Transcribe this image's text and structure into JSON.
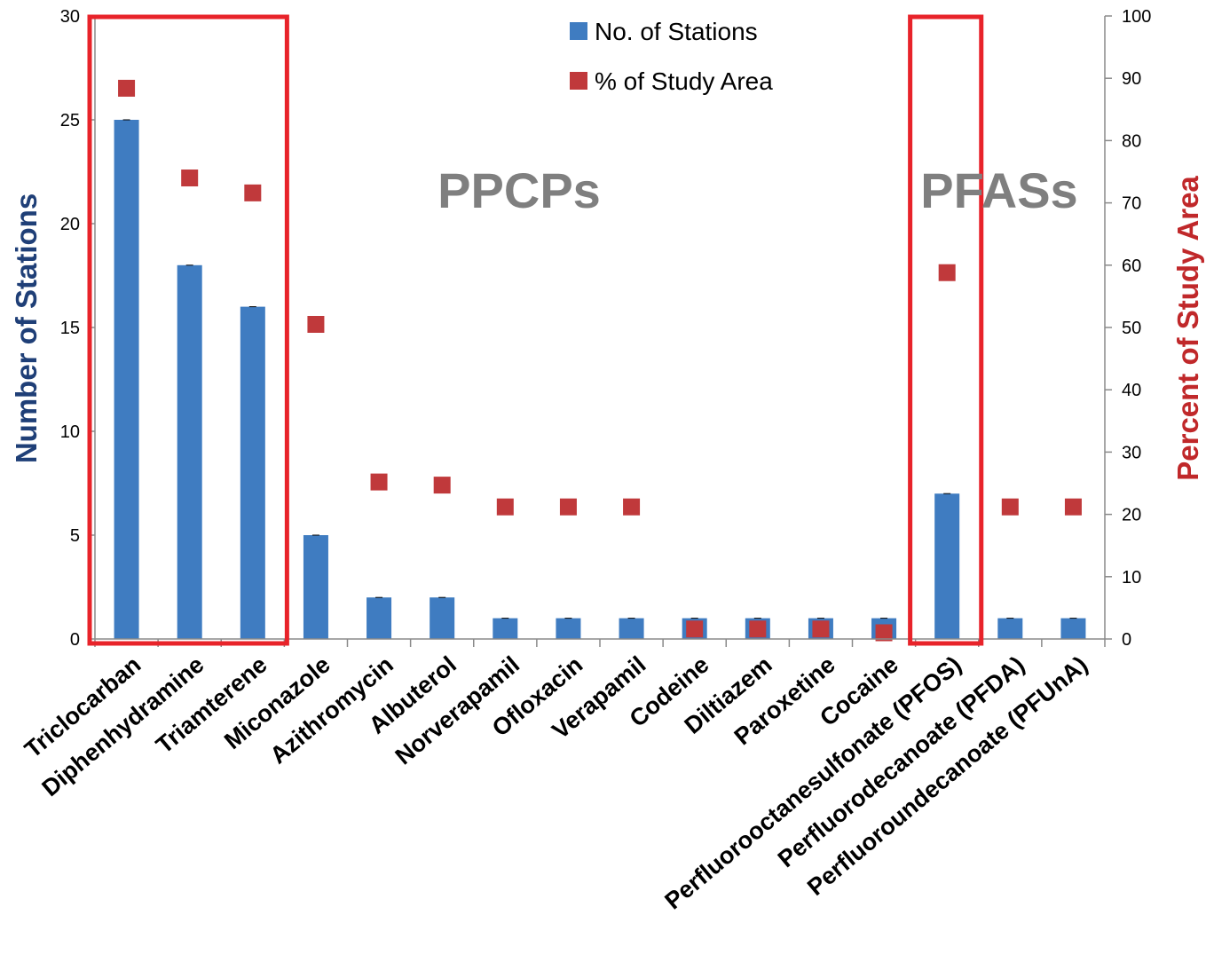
{
  "chart_data": {
    "type": "bar",
    "categories": [
      "Triclocarban",
      "Diphenhydramine",
      "Triamterene",
      "Miconazole",
      "Azithromycin",
      "Albuterol",
      "Norverapamil",
      "Ofloxacin",
      "Verapamil",
      "Codeine",
      "Diltiazem",
      "Paroxetine",
      "Cocaine",
      "Perfluorooctanesulfonate (PFOS)",
      "Perfluorodecanoate (PFDA)",
      "Perfluoroundecanoate (PFUnA)"
    ],
    "series": [
      {
        "name": "No. of Stations",
        "type": "bar",
        "axis": "left",
        "color": "#3f7cc1",
        "values": [
          25,
          18,
          16,
          5,
          2,
          2,
          1,
          1,
          1,
          1,
          1,
          1,
          1,
          7,
          1,
          1
        ]
      },
      {
        "name": "% of Study Area",
        "type": "scatter",
        "axis": "right",
        "color": "#c0393b",
        "values": [
          88.4,
          74.0,
          71.6,
          50.5,
          25.2,
          24.7,
          21.2,
          21.2,
          21.2,
          1.6,
          1.6,
          1.6,
          1.0,
          58.8,
          21.2,
          21.2
        ]
      }
    ],
    "y_left": {
      "label": "Number of Stations",
      "range": [
        0,
        30
      ],
      "ticks": [
        "0",
        "5",
        "10",
        "15",
        "20",
        "25",
        "30"
      ]
    },
    "y_right": {
      "label": "Percent of Study Area",
      "range": [
        0,
        100
      ],
      "ticks": [
        "0",
        "10",
        "20",
        "30",
        "40",
        "50",
        "60",
        "70",
        "80",
        "90",
        "100"
      ]
    },
    "legend": {
      "placement": "top-center"
    },
    "grid": false,
    "annotations": [
      {
        "text": "PPCPs",
        "highlight_color": "#e8232a"
      },
      {
        "text": "PFASs"
      }
    ],
    "highlight_groups": [
      {
        "from": 0,
        "to": 2,
        "color": "#e8232a"
      },
      {
        "from": 13,
        "to": 13,
        "color": "#e8232a"
      }
    ]
  }
}
